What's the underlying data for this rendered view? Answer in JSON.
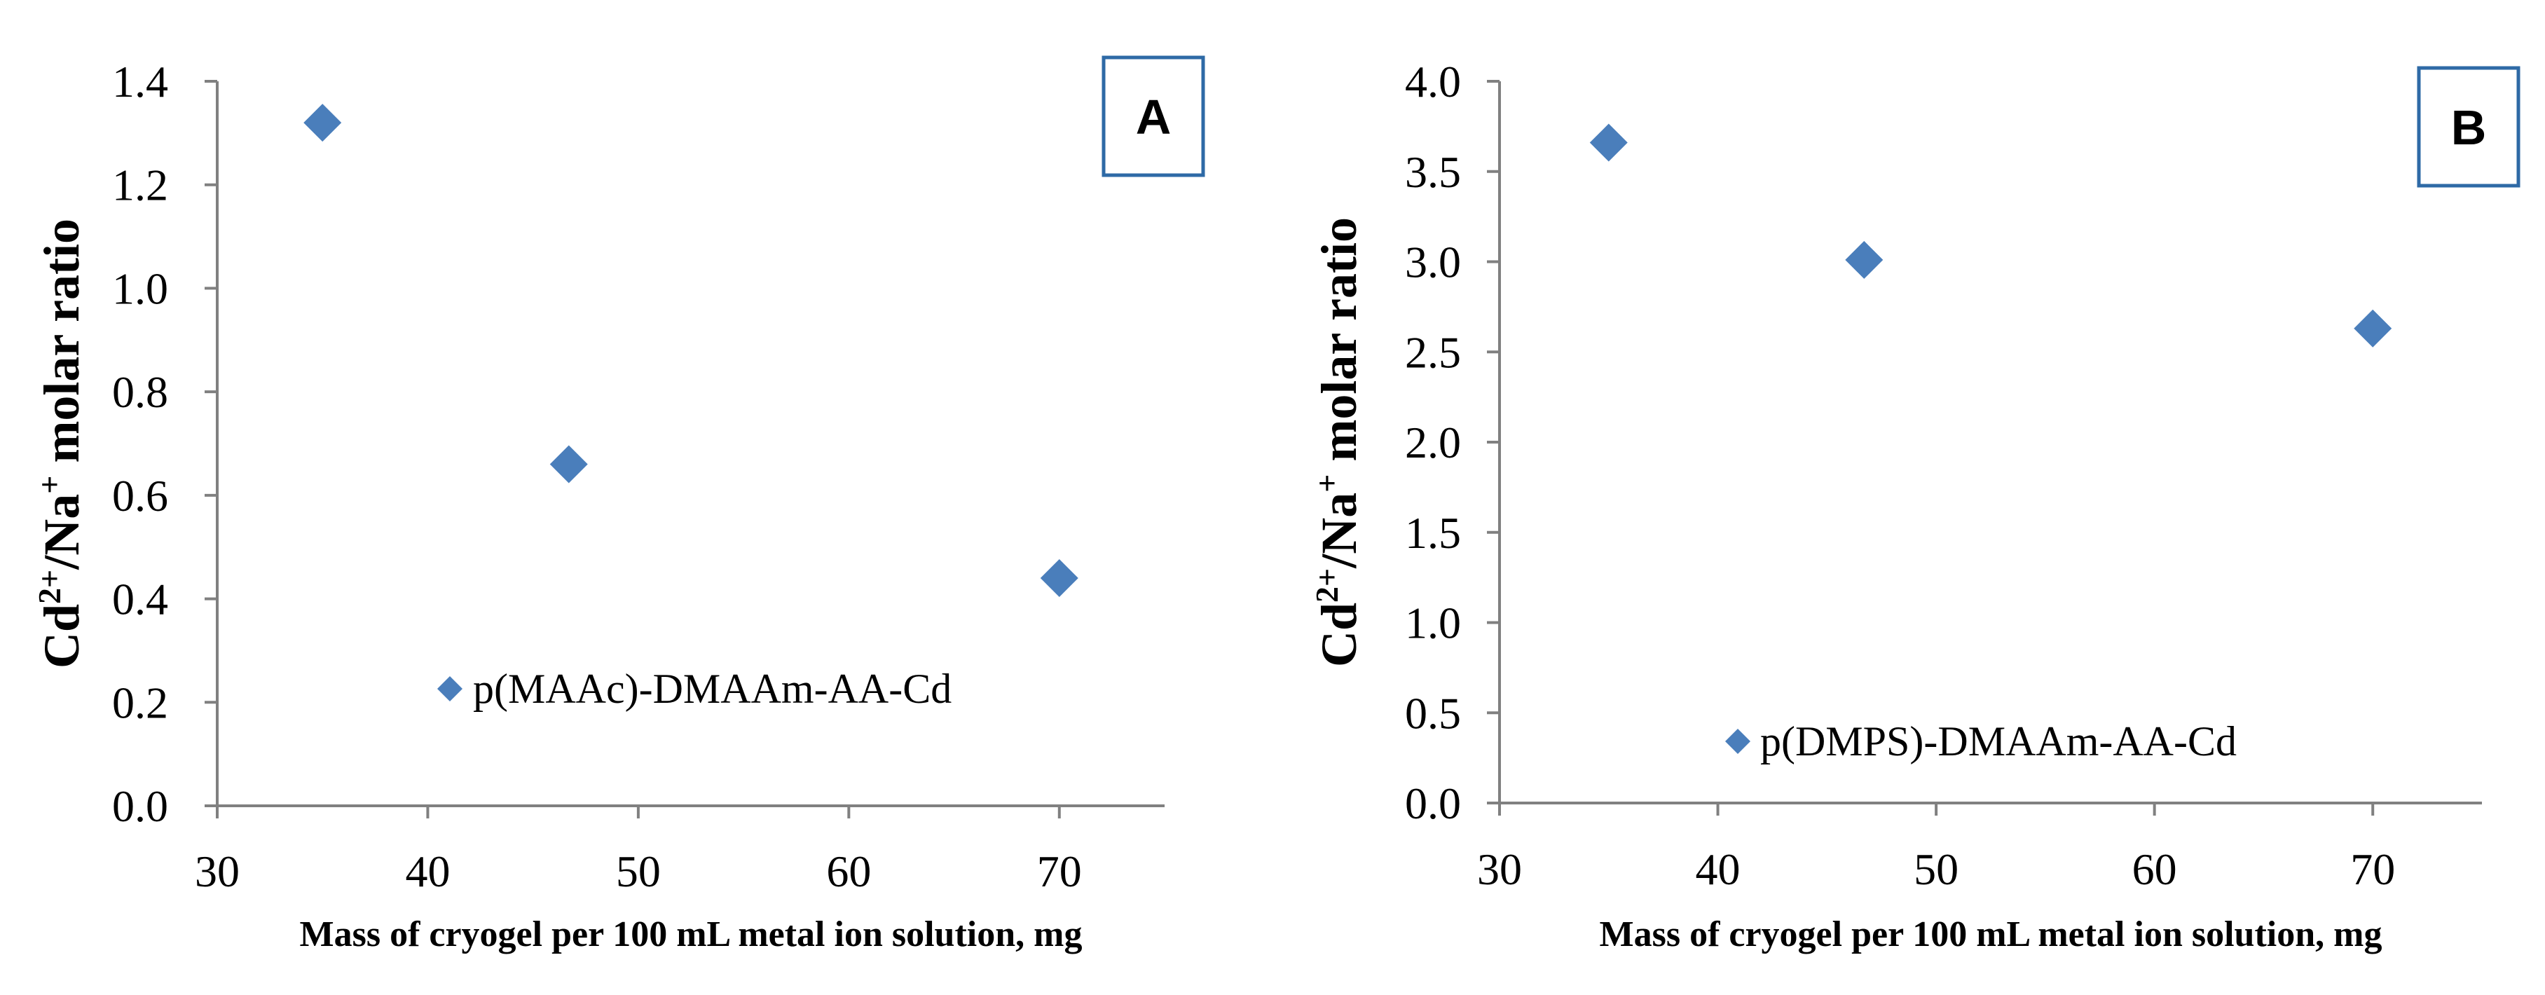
{
  "colors": {
    "marker": "#4a7ebb",
    "axis": "#808080",
    "panel_box": "#2e6aa6"
  },
  "chart_data": [
    {
      "type": "scatter",
      "panel_label": "A",
      "xlabel": "Mass of cryogel per 100 mL metal ion solution, mg",
      "ylabel": {
        "base1": "Cd",
        "sup1": "2+",
        "mid": "/Na",
        "sup2": "+",
        "rest": " molar ratio"
      },
      "xlim": [
        30,
        75
      ],
      "ylim": [
        0,
        1.4
      ],
      "xticks": [
        30,
        40,
        50,
        60,
        70
      ],
      "yticks": [
        "0.0",
        "0.2",
        "0.4",
        "0.6",
        "0.8",
        "1.0",
        "1.2",
        "1.4"
      ],
      "series": [
        {
          "name": "p(MAAc)-DMAAm-AA-Cd",
          "x": [
            35,
            46.7,
            70
          ],
          "y": [
            1.32,
            0.66,
            0.44
          ]
        }
      ],
      "legend": "inside-bottom-left"
    },
    {
      "type": "scatter",
      "panel_label": "B",
      "xlabel": "Mass of cryogel per 100 mL metal ion solution,  mg",
      "ylabel": {
        "base1": "Cd",
        "sup1": "2+",
        "mid": "/Na",
        "sup2": "+",
        "rest": " molar ratio"
      },
      "xlim": [
        30,
        75
      ],
      "ylim": [
        0,
        4.0
      ],
      "xticks": [
        30,
        40,
        50,
        60,
        70
      ],
      "yticks": [
        "0.0",
        "0.5",
        "1.0",
        "1.5",
        "2.0",
        "2.5",
        "3.0",
        "3.5",
        "4.0"
      ],
      "series": [
        {
          "name": "p(DMPS)-DMAAm-AA-Cd",
          "x": [
            35,
            46.7,
            70
          ],
          "y": [
            3.66,
            3.01,
            2.63
          ]
        }
      ],
      "legend": "inside-bottom-left"
    }
  ]
}
